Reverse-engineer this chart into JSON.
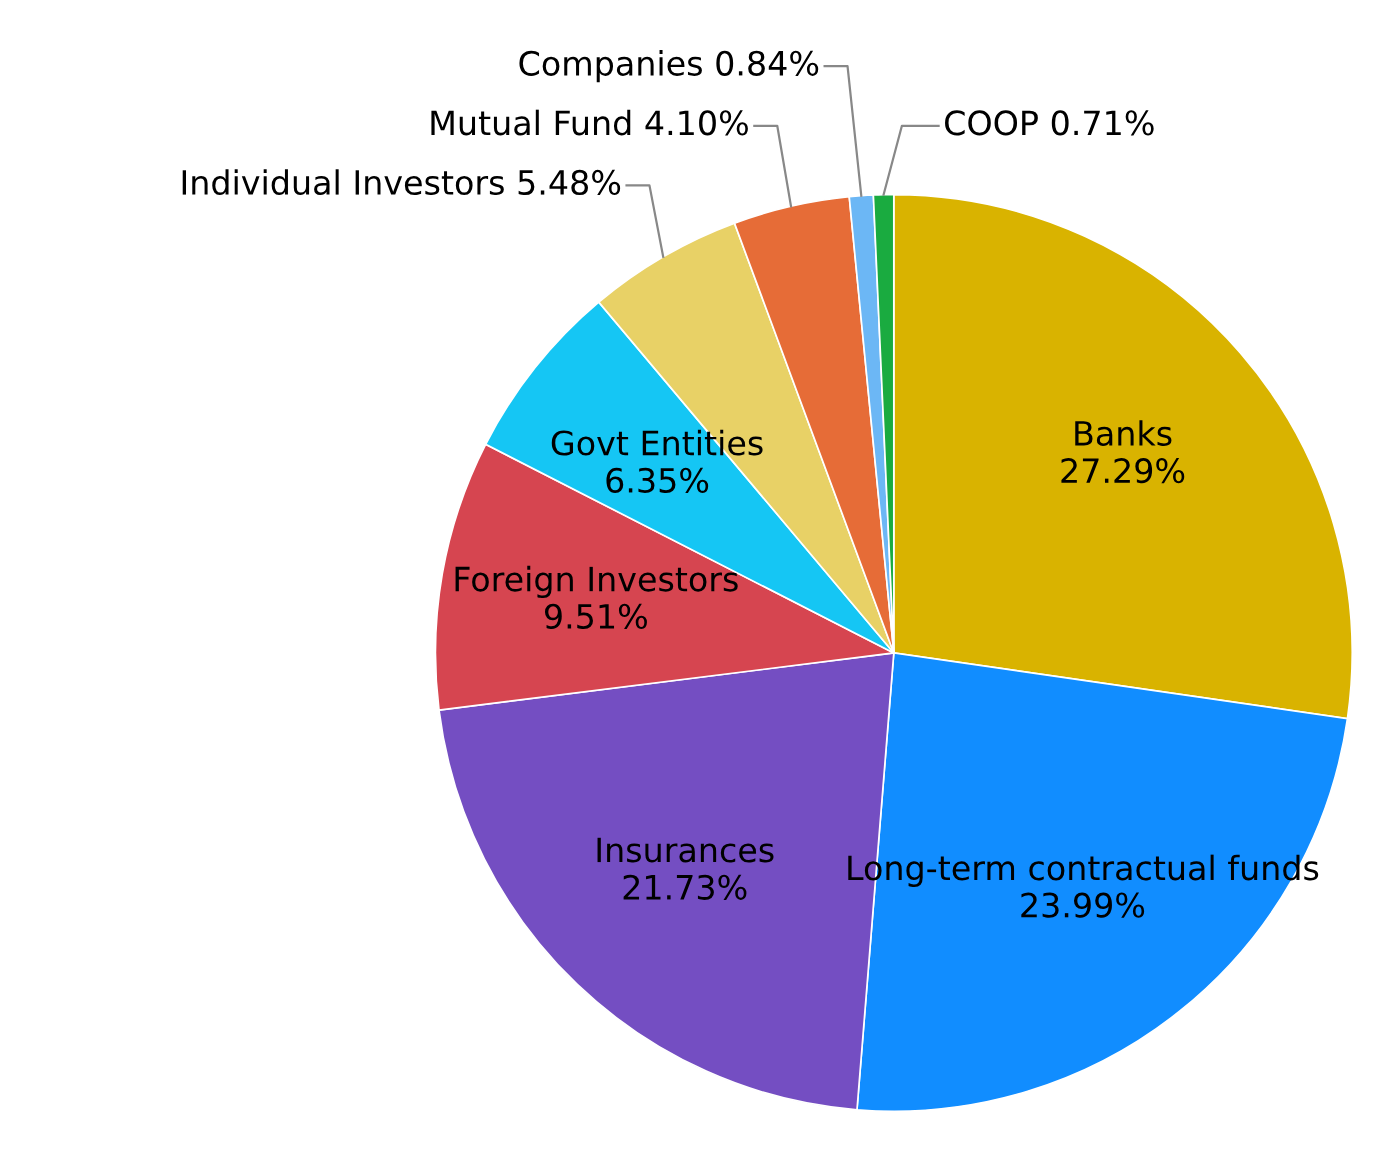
{
  "chart_data": {
    "type": "pie",
    "categories": [
      "Banks",
      "Long-term contractual funds",
      "Insurances",
      "Foreign Investors",
      "Govt Entities",
      "Individual Investors",
      "Mutual Fund",
      "Companies",
      "COOP"
    ],
    "values": [
      27.29,
      23.99,
      21.73,
      9.51,
      6.35,
      5.48,
      4.1,
      0.84,
      0.71
    ],
    "value_labels": [
      "27.29%",
      "23.99%",
      "21.73%",
      "9.51%",
      "6.35%",
      "5.48%",
      "4.10%",
      "0.84%",
      "0.71%"
    ],
    "colors": [
      "#d9b300",
      "#118dff",
      "#744ec2",
      "#d64550",
      "#15c6f4",
      "#e8d166",
      "#e66c37",
      "#6cb7f5",
      "#1aab40"
    ],
    "legend": false
  }
}
